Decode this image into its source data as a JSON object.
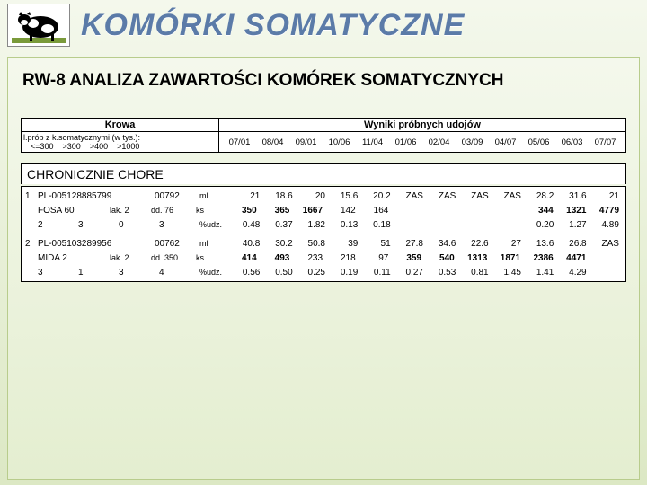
{
  "title": "KOMÓRKI SOMATYCZNE",
  "subtitle": "RW-8   ANALIZA ZAWARTOŚCI KOMÓREK SOMATYCZNYCH",
  "header_table": {
    "col_left": "Krowa",
    "col_right": "Wyniki próbnych udojów",
    "probes_label": "l.prób z k.somatycznymi (w tys.):",
    "thresholds": [
      "<=300",
      ">300",
      ">400",
      ">1000"
    ],
    "dates": [
      "07/01",
      "08/04",
      "09/01",
      "10/06",
      "11/04",
      "01/06",
      "02/04",
      "03/09",
      "04/07",
      "05/06",
      "06/03",
      "07/07"
    ]
  },
  "section_label": "CHRONICZNIE CHORE",
  "metric_labels": {
    "ml": "ml",
    "ks": "ks",
    "pct": "%udz."
  },
  "cows": [
    {
      "idx": "1",
      "id": "PL-005128885799",
      "farm": "00792",
      "name": "FOSA 60",
      "lak": "lak. 2",
      "dd": "dd. 76",
      "counts": [
        "2",
        "3",
        "0",
        "3"
      ],
      "ml": [
        "21",
        "18.6",
        "20",
        "15.6",
        "20.2",
        "ZAS",
        "ZAS",
        "ZAS",
        "ZAS",
        "28.2",
        "31.6",
        "21"
      ],
      "ks": [
        "350",
        "365",
        "1667",
        "142",
        "164",
        "",
        "",
        "",
        "",
        "344",
        "1321",
        "4779"
      ],
      "pct": [
        "0.48",
        "0.37",
        "1.82",
        "0.13",
        "0.18",
        "",
        "",
        "",
        "",
        "0.20",
        "1.27",
        "4.89"
      ],
      "ks_bold": [
        true,
        true,
        true,
        false,
        false,
        false,
        false,
        false,
        false,
        true,
        true,
        true
      ],
      "pct_bold": [
        false,
        false,
        false,
        false,
        false,
        false,
        false,
        false,
        false,
        false,
        false,
        false
      ]
    },
    {
      "idx": "2",
      "id": "PL-005103289956",
      "farm": "00762",
      "name": "MIDA 2",
      "lak": "lak. 2",
      "dd": "dd. 350",
      "counts": [
        "3",
        "1",
        "3",
        "4"
      ],
      "ml": [
        "40.8",
        "30.2",
        "50.8",
        "39",
        "51",
        "27.8",
        "34.6",
        "22.6",
        "27",
        "13.6",
        "26.8",
        "ZAS"
      ],
      "ks": [
        "414",
        "493",
        "233",
        "218",
        "97",
        "359",
        "540",
        "1313",
        "1871",
        "2386",
        "4471",
        ""
      ],
      "pct": [
        "0.56",
        "0.50",
        "0.25",
        "0.19",
        "0.11",
        "0.27",
        "0.53",
        "0.81",
        "1.45",
        "1.41",
        "4.29",
        ""
      ],
      "ks_bold": [
        true,
        true,
        false,
        false,
        false,
        true,
        true,
        true,
        true,
        true,
        true,
        false
      ],
      "pct_bold": [
        false,
        false,
        false,
        false,
        false,
        false,
        false,
        false,
        false,
        false,
        false,
        false
      ]
    }
  ],
  "colors": {
    "title_color": "#5b7ba8",
    "bg_top": "#f4f8ec",
    "bg_bottom": "#dce8c4",
    "border": "#b8cc8c"
  }
}
